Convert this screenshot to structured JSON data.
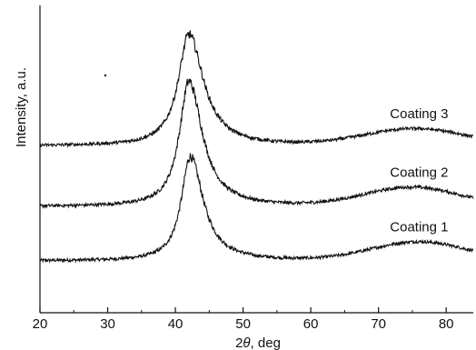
{
  "chart_data": {
    "type": "line",
    "title": "",
    "xlabel": {
      "prefix": "2",
      "symbol": "θ",
      "suffix": ", deg"
    },
    "ylabel": "Intensity, a.u.",
    "xlim": [
      20,
      84
    ],
    "x_ticks": [
      20,
      30,
      40,
      50,
      60,
      70,
      80
    ],
    "y_ticks_labeled": false,
    "grid": false,
    "legend": "none",
    "colors": {
      "line": "#111111",
      "axis": "#111111",
      "background": "#ffffff"
    },
    "series": [
      {
        "name": "Coating 1",
        "label_position_x": 76,
        "baseline": 0.0,
        "peak": {
          "x": 42.2,
          "height": 1.0,
          "width_left": 1.6,
          "width_right": 2.3
        },
        "broad_hump": {
          "x": 76.0,
          "height": 0.18,
          "width": 7.0
        },
        "noise": 0.015
      },
      {
        "name": "Coating 2",
        "label_position_x": 76,
        "baseline": 0.52,
        "peak": {
          "x": 42.0,
          "height": 1.2,
          "width_left": 1.7,
          "width_right": 2.4
        },
        "broad_hump": {
          "x": 75.0,
          "height": 0.18,
          "width": 7.0
        },
        "noise": 0.015
      },
      {
        "name": "Coating 3",
        "label_position_x": 76,
        "baseline": 1.1,
        "peak": {
          "x": 42.0,
          "height": 1.07,
          "width_left": 1.9,
          "width_right": 2.6
        },
        "broad_hump": {
          "x": 75.5,
          "height": 0.16,
          "width": 7.5
        },
        "noise": 0.015
      }
    ]
  }
}
